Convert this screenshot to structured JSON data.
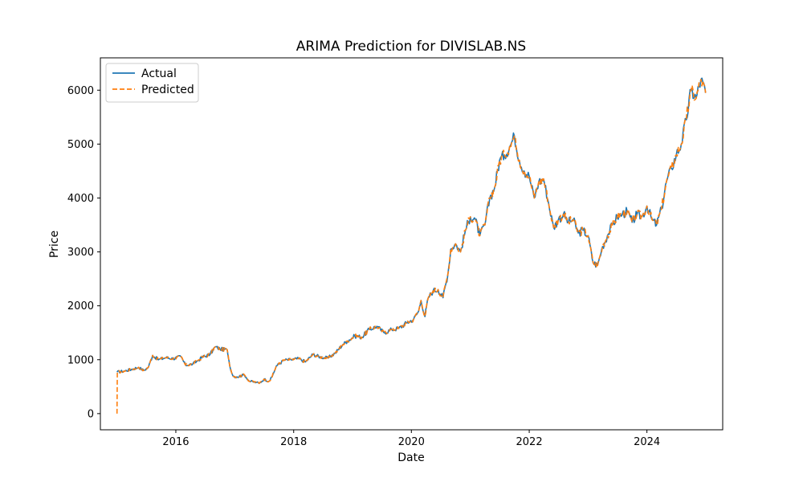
{
  "chart_data": {
    "type": "line",
    "title": "ARIMA Prediction for DIVISLAB.NS",
    "xlabel": "Date",
    "ylabel": "Price",
    "xlim": [
      "2014-09-20",
      "2025-04-15"
    ],
    "ylim": [
      -300,
      6600
    ],
    "xticks": [
      {
        "date": "2016-01-01",
        "label": "2016"
      },
      {
        "date": "2018-01-01",
        "label": "2018"
      },
      {
        "date": "2020-01-01",
        "label": "2020"
      },
      {
        "date": "2022-01-01",
        "label": "2022"
      },
      {
        "date": "2024-01-01",
        "label": "2024"
      }
    ],
    "yticks": [
      0,
      1000,
      2000,
      3000,
      4000,
      5000,
      6000
    ],
    "grid": false,
    "legend_position": "top-left",
    "series": [
      {
        "name": "Actual",
        "color": "#1f77b4",
        "style": "solid",
        "points": [
          [
            "2015-01-01",
            770
          ],
          [
            "2015-02-15",
            790
          ],
          [
            "2015-04-01",
            820
          ],
          [
            "2015-05-15",
            860
          ],
          [
            "2015-06-15",
            800
          ],
          [
            "2015-07-15",
            860
          ],
          [
            "2015-08-10",
            1080
          ],
          [
            "2015-09-15",
            1000
          ],
          [
            "2015-11-01",
            1040
          ],
          [
            "2015-12-15",
            1020
          ],
          [
            "2016-02-01",
            1060
          ],
          [
            "2016-03-01",
            900
          ],
          [
            "2016-04-15",
            920
          ],
          [
            "2016-05-15",
            980
          ],
          [
            "2016-06-15",
            1050
          ],
          [
            "2016-08-01",
            1100
          ],
          [
            "2016-09-01",
            1240
          ],
          [
            "2016-10-01",
            1200
          ],
          [
            "2016-11-15",
            1180
          ],
          [
            "2016-12-01",
            880
          ],
          [
            "2016-12-20",
            700
          ],
          [
            "2017-01-15",
            680
          ],
          [
            "2017-03-01",
            720
          ],
          [
            "2017-04-01",
            600
          ],
          [
            "2017-05-15",
            580
          ],
          [
            "2017-06-01",
            560
          ],
          [
            "2017-07-01",
            640
          ],
          [
            "2017-08-01",
            600
          ],
          [
            "2017-08-20",
            680
          ],
          [
            "2017-09-15",
            880
          ],
          [
            "2017-11-01",
            990
          ],
          [
            "2017-12-15",
            1000
          ],
          [
            "2018-02-01",
            1020
          ],
          [
            "2018-03-15",
            960
          ],
          [
            "2018-05-01",
            1100
          ],
          [
            "2018-06-15",
            1050
          ],
          [
            "2018-08-01",
            1030
          ],
          [
            "2018-09-15",
            1120
          ],
          [
            "2018-11-01",
            1280
          ],
          [
            "2018-12-01",
            1350
          ],
          [
            "2019-01-15",
            1440
          ],
          [
            "2019-03-01",
            1420
          ],
          [
            "2019-04-15",
            1560
          ],
          [
            "2019-06-01",
            1620
          ],
          [
            "2019-07-15",
            1500
          ],
          [
            "2019-09-01",
            1560
          ],
          [
            "2019-10-15",
            1580
          ],
          [
            "2019-12-01",
            1680
          ],
          [
            "2020-01-15",
            1750
          ],
          [
            "2020-02-15",
            1900
          ],
          [
            "2020-03-01",
            2100
          ],
          [
            "2020-03-25",
            1800
          ],
          [
            "2020-04-15",
            2150
          ],
          [
            "2020-05-15",
            2280
          ],
          [
            "2020-06-15",
            2300
          ],
          [
            "2020-07-15",
            2150
          ],
          [
            "2020-08-15",
            2600
          ],
          [
            "2020-09-01",
            3050
          ],
          [
            "2020-10-01",
            3150
          ],
          [
            "2020-11-01",
            3000
          ],
          [
            "2020-12-01",
            3400
          ],
          [
            "2021-01-01",
            3650
          ],
          [
            "2021-02-01",
            3600
          ],
          [
            "2021-03-01",
            3300
          ],
          [
            "2021-04-01",
            3500
          ],
          [
            "2021-05-01",
            4000
          ],
          [
            "2021-06-01",
            4200
          ],
          [
            "2021-07-01",
            4700
          ],
          [
            "2021-08-01",
            4800
          ],
          [
            "2021-09-01",
            4950
          ],
          [
            "2021-10-01",
            5150
          ],
          [
            "2021-11-01",
            4700
          ],
          [
            "2021-12-01",
            4500
          ],
          [
            "2022-01-01",
            4400
          ],
          [
            "2022-02-01",
            4000
          ],
          [
            "2022-03-01",
            4300
          ],
          [
            "2022-04-01",
            4350
          ],
          [
            "2022-05-01",
            3900
          ],
          [
            "2022-06-01",
            3450
          ],
          [
            "2022-07-01",
            3600
          ],
          [
            "2022-08-01",
            3700
          ],
          [
            "2022-09-01",
            3550
          ],
          [
            "2022-10-01",
            3600
          ],
          [
            "2022-11-01",
            3350
          ],
          [
            "2022-12-01",
            3400
          ],
          [
            "2023-01-01",
            3300
          ],
          [
            "2023-02-01",
            2800
          ],
          [
            "2023-03-01",
            2750
          ],
          [
            "2023-04-01",
            3100
          ],
          [
            "2023-05-01",
            3300
          ],
          [
            "2023-06-01",
            3500
          ],
          [
            "2023-07-01",
            3650
          ],
          [
            "2023-08-01",
            3700
          ],
          [
            "2023-09-01",
            3750
          ],
          [
            "2023-10-01",
            3550
          ],
          [
            "2023-11-01",
            3700
          ],
          [
            "2023-12-01",
            3650
          ],
          [
            "2024-01-01",
            3850
          ],
          [
            "2024-02-01",
            3600
          ],
          [
            "2024-03-01",
            3500
          ],
          [
            "2024-04-01",
            3800
          ],
          [
            "2024-05-01",
            4300
          ],
          [
            "2024-06-01",
            4550
          ],
          [
            "2024-07-01",
            4800
          ],
          [
            "2024-08-01",
            5000
          ],
          [
            "2024-09-01",
            5450
          ],
          [
            "2024-10-01",
            6000
          ],
          [
            "2024-11-01",
            5850
          ],
          [
            "2024-12-01",
            6200
          ],
          [
            "2024-12-30",
            5950
          ]
        ]
      },
      {
        "name": "Predicted",
        "color": "#ff7f0e",
        "style": "dashed",
        "points": [
          [
            "2015-01-01",
            0
          ],
          [
            "2015-01-03",
            770
          ],
          [
            "2015-02-15",
            790
          ],
          [
            "2015-04-01",
            820
          ],
          [
            "2015-05-15",
            860
          ],
          [
            "2015-06-15",
            800
          ],
          [
            "2015-07-15",
            860
          ],
          [
            "2015-08-10",
            1080
          ],
          [
            "2015-09-15",
            1000
          ],
          [
            "2015-11-01",
            1040
          ],
          [
            "2015-12-15",
            1020
          ],
          [
            "2016-02-01",
            1060
          ],
          [
            "2016-03-01",
            900
          ],
          [
            "2016-04-15",
            920
          ],
          [
            "2016-05-15",
            980
          ],
          [
            "2016-06-15",
            1050
          ],
          [
            "2016-08-01",
            1100
          ],
          [
            "2016-09-01",
            1240
          ],
          [
            "2016-10-01",
            1200
          ],
          [
            "2016-11-15",
            1180
          ],
          [
            "2016-12-01",
            880
          ],
          [
            "2016-12-20",
            700
          ],
          [
            "2017-01-15",
            680
          ],
          [
            "2017-03-01",
            720
          ],
          [
            "2017-04-01",
            600
          ],
          [
            "2017-05-15",
            580
          ],
          [
            "2017-06-01",
            560
          ],
          [
            "2017-07-01",
            640
          ],
          [
            "2017-08-01",
            600
          ],
          [
            "2017-08-20",
            680
          ],
          [
            "2017-09-15",
            880
          ],
          [
            "2017-11-01",
            990
          ],
          [
            "2017-12-15",
            1000
          ],
          [
            "2018-02-01",
            1020
          ],
          [
            "2018-03-15",
            960
          ],
          [
            "2018-05-01",
            1100
          ],
          [
            "2018-06-15",
            1050
          ],
          [
            "2018-08-01",
            1030
          ],
          [
            "2018-09-15",
            1120
          ],
          [
            "2018-11-01",
            1280
          ],
          [
            "2018-12-01",
            1350
          ],
          [
            "2019-01-15",
            1440
          ],
          [
            "2019-03-01",
            1420
          ],
          [
            "2019-04-15",
            1560
          ],
          [
            "2019-06-01",
            1620
          ],
          [
            "2019-07-15",
            1500
          ],
          [
            "2019-09-01",
            1560
          ],
          [
            "2019-10-15",
            1580
          ],
          [
            "2019-12-01",
            1680
          ],
          [
            "2020-01-15",
            1750
          ],
          [
            "2020-02-15",
            1900
          ],
          [
            "2020-03-01",
            2100
          ],
          [
            "2020-03-25",
            1800
          ],
          [
            "2020-04-15",
            2150
          ],
          [
            "2020-05-15",
            2280
          ],
          [
            "2020-06-15",
            2300
          ],
          [
            "2020-07-15",
            2150
          ],
          [
            "2020-08-15",
            2600
          ],
          [
            "2020-09-01",
            3050
          ],
          [
            "2020-10-01",
            3150
          ],
          [
            "2020-11-01",
            3000
          ],
          [
            "2020-12-01",
            3400
          ],
          [
            "2021-01-01",
            3650
          ],
          [
            "2021-02-01",
            3600
          ],
          [
            "2021-03-01",
            3300
          ],
          [
            "2021-04-01",
            3500
          ],
          [
            "2021-05-01",
            4000
          ],
          [
            "2021-06-01",
            4200
          ],
          [
            "2021-07-01",
            4700
          ],
          [
            "2021-08-01",
            4800
          ],
          [
            "2021-09-01",
            4950
          ],
          [
            "2021-10-01",
            5150
          ],
          [
            "2021-11-01",
            4700
          ],
          [
            "2021-12-01",
            4500
          ],
          [
            "2022-01-01",
            4400
          ],
          [
            "2022-02-01",
            4000
          ],
          [
            "2022-03-01",
            4300
          ],
          [
            "2022-04-01",
            4350
          ],
          [
            "2022-05-01",
            3900
          ],
          [
            "2022-06-01",
            3450
          ],
          [
            "2022-07-01",
            3600
          ],
          [
            "2022-08-01",
            3700
          ],
          [
            "2022-09-01",
            3550
          ],
          [
            "2022-10-01",
            3600
          ],
          [
            "2022-11-01",
            3350
          ],
          [
            "2022-12-01",
            3400
          ],
          [
            "2023-01-01",
            3300
          ],
          [
            "2023-02-01",
            2800
          ],
          [
            "2023-03-01",
            2750
          ],
          [
            "2023-04-01",
            3100
          ],
          [
            "2023-05-01",
            3300
          ],
          [
            "2023-06-01",
            3500
          ],
          [
            "2023-07-01",
            3650
          ],
          [
            "2023-08-01",
            3700
          ],
          [
            "2023-09-01",
            3750
          ],
          [
            "2023-10-01",
            3550
          ],
          [
            "2023-11-01",
            3700
          ],
          [
            "2023-12-01",
            3650
          ],
          [
            "2024-01-01",
            3850
          ],
          [
            "2024-02-01",
            3600
          ],
          [
            "2024-03-01",
            3500
          ],
          [
            "2024-04-01",
            3800
          ],
          [
            "2024-05-01",
            4300
          ],
          [
            "2024-06-01",
            4550
          ],
          [
            "2024-07-01",
            4800
          ],
          [
            "2024-08-01",
            5000
          ],
          [
            "2024-09-01",
            5450
          ],
          [
            "2024-10-01",
            6000
          ],
          [
            "2024-11-01",
            5850
          ],
          [
            "2024-12-01",
            6200
          ],
          [
            "2024-12-30",
            5950
          ]
        ]
      }
    ]
  }
}
